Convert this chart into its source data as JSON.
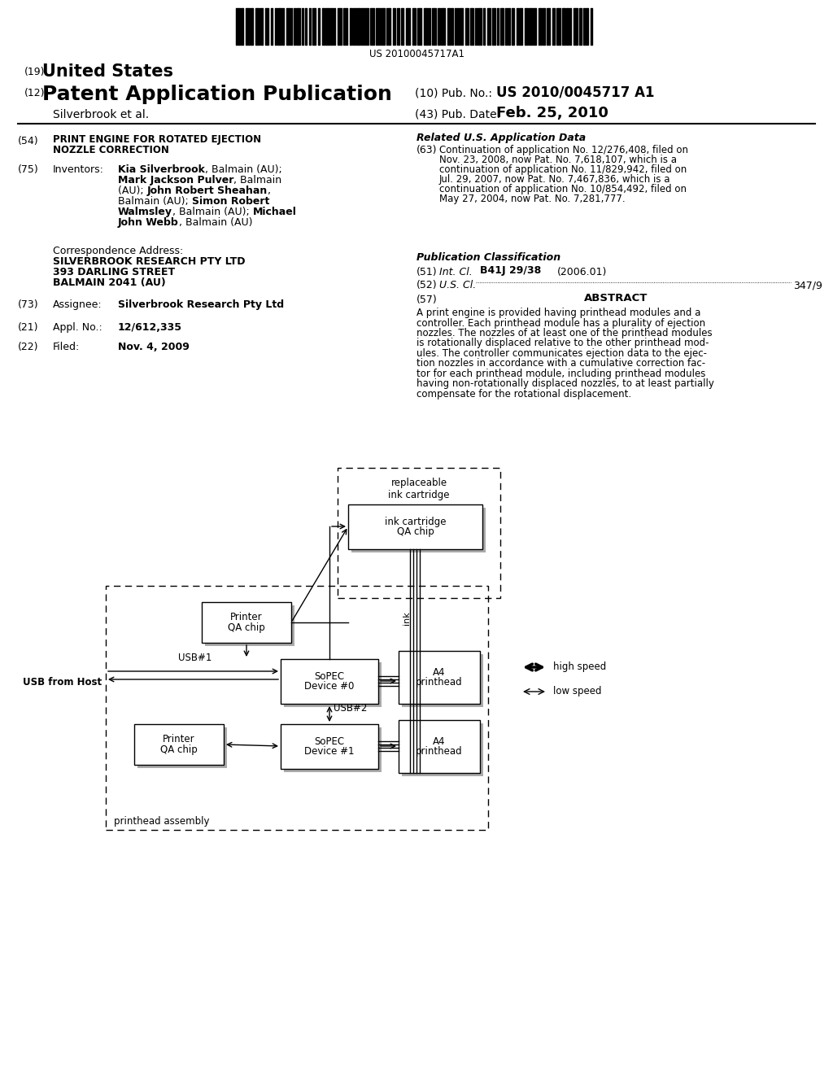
{
  "background_color": "#ffffff",
  "barcode_text": "US 20100045717A1",
  "title_19": "United States",
  "title_19_num": "(19)",
  "title_12": "Patent Application Publication",
  "title_12_num": "(12)",
  "title_10_label": "(10) Pub. No.:",
  "title_10_value": "US 2010/0045717 A1",
  "title_43_label": "(43) Pub. Date:",
  "title_43_value": "Feb. 25, 2010",
  "inventor_name": "Silverbrook et al.",
  "section_54_num": "(54)",
  "section_54_title_line1": "PRINT ENGINE FOR ROTATED EJECTION",
  "section_54_title_line2": "NOZZLE CORRECTION",
  "section_75_num": "(75)",
  "section_75_label": "Inventors:",
  "corr_label": "Correspondence Address:",
  "corr_line1": "SILVERBROOK RESEARCH PTY LTD",
  "corr_line2": "393 DARLING STREET",
  "corr_line3": "BALMAIN 2041 (AU)",
  "section_73_num": "(73)",
  "section_73_label": "Assignee:",
  "section_73_value": "Silverbrook Research Pty Ltd",
  "section_21_num": "(21)",
  "section_21_label": "Appl. No.:",
  "section_21_value": "12/612,335",
  "section_22_num": "(22)",
  "section_22_label": "Filed:",
  "section_22_value": "Nov. 4, 2009",
  "related_title": "Related U.S. Application Data",
  "section_63_num": "(63)",
  "section_63_lines": [
    "Continuation of application No. 12/276,408, filed on",
    "Nov. 23, 2008, now Pat. No. 7,618,107, which is a",
    "continuation of application No. 11/829,942, filed on",
    "Jul. 29, 2007, now Pat. No. 7,467,836, which is a",
    "continuation of application No. 10/854,492, filed on",
    "May 27, 2004, now Pat. No. 7,281,777."
  ],
  "pub_class_title": "Publication Classification",
  "section_51_num": "(51)",
  "section_51_label": "Int. Cl.",
  "section_51_value": "B41J 29/38",
  "section_51_year": "(2006.01)",
  "section_52_num": "(52)",
  "section_52_label": "U.S. Cl.",
  "section_52_dots": "....................................................................",
  "section_52_value": "347/9",
  "section_57_num": "(57)",
  "section_57_label": "ABSTRACT",
  "section_57_lines": [
    "A print engine is provided having printhead modules and a",
    "controller. Each printhead module has a plurality of ejection",
    "nozzles. The nozzles of at least one of the printhead modules",
    "is rotationally displaced relative to the other printhead mod-",
    "ules. The controller communicates ejection data to the ejec-",
    "tion nozzles in accordance with a cumulative correction fac-",
    "tor for each printhead module, including printhead modules",
    "having non-rotationally displaced nozzles, to at least partially",
    "compensate for the rotational displacement."
  ]
}
